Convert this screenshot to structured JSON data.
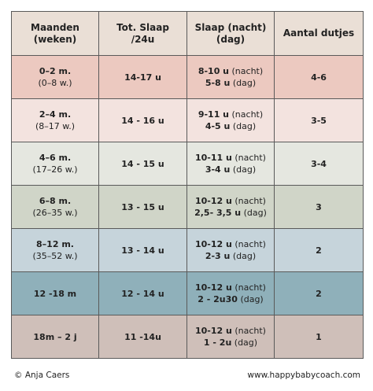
{
  "header": {
    "color": "#eadfd6",
    "cells": [
      [
        "Maanden",
        "(weken)"
      ],
      [
        "Tot. Slaap",
        "/24u"
      ],
      [
        "Slaap (nacht)",
        "(dag)"
      ],
      [
        "Aantal dutjes"
      ]
    ]
  },
  "rows": [
    {
      "color": "#ecc9c0",
      "cells": [
        [
          {
            "bold": "0–2 m."
          },
          {
            "plain": "(0–8 w.)"
          }
        ],
        [
          {
            "bold": "14-17 u"
          }
        ],
        [
          {
            "bold": "8-10 u",
            "plain": "(nacht)"
          },
          {
            "bold": "5-8 u",
            "plain": "(dag)"
          }
        ],
        [
          {
            "bold": "4-6"
          }
        ]
      ]
    },
    {
      "color": "#f3e3df",
      "cells": [
        [
          {
            "bold": "2–4 m."
          },
          {
            "plain": "(8–17 w.)"
          }
        ],
        [
          {
            "bold": "14 - 16 u"
          }
        ],
        [
          {
            "bold": "9-11 u",
            "plain": "(nacht)"
          },
          {
            "bold": "4-5 u",
            "plain": "(dag)"
          }
        ],
        [
          {
            "bold": "3-5"
          }
        ]
      ]
    },
    {
      "color": "#e5e7e0",
      "cells": [
        [
          {
            "bold": "4–6 m."
          },
          {
            "plain": "(17–26 w.)"
          }
        ],
        [
          {
            "bold": "14 - 15 u"
          }
        ],
        [
          {
            "bold": "10-11 u",
            "plain": "(nacht)"
          },
          {
            "bold": "3-4 u",
            "plain": "(dag)"
          }
        ],
        [
          {
            "bold": "3-4"
          }
        ]
      ]
    },
    {
      "color": "#d0d5c8",
      "cells": [
        [
          {
            "bold": "6–8 m."
          },
          {
            "plain": "(26–35 w.)"
          }
        ],
        [
          {
            "bold": "13 - 15 u"
          }
        ],
        [
          {
            "bold": "10-12 u",
            "plain": "(nacht)"
          },
          {
            "bold": "2,5- 3,5 u",
            "plain": "(dag)"
          }
        ],
        [
          {
            "bold": "3"
          }
        ]
      ]
    },
    {
      "color": "#c6d4db",
      "cells": [
        [
          {
            "bold": "8–12 m."
          },
          {
            "plain": "(35–52 w.)"
          }
        ],
        [
          {
            "bold": "13 - 14 u"
          }
        ],
        [
          {
            "bold": "10-12 u",
            "plain": "(nacht)"
          },
          {
            "bold": "2-3 u",
            "plain": "(dag)"
          }
        ],
        [
          {
            "bold": "2"
          }
        ]
      ]
    },
    {
      "color": "#8fb0ba",
      "cells": [
        [
          {
            "bold": "12 -18 m"
          }
        ],
        [
          {
            "bold": "12 - 14 u"
          }
        ],
        [
          {
            "bold": "10-12 u",
            "plain": "(nacht)"
          },
          {
            "bold": "2 - 2u30",
            "plain": "(dag)"
          }
        ],
        [
          {
            "bold": "2"
          }
        ]
      ]
    },
    {
      "color": "#cfbfb9",
      "cells": [
        [
          {
            "bold": "18m – 2 j"
          }
        ],
        [
          {
            "bold": "11 -14u"
          }
        ],
        [
          {
            "bold": "10-12 u",
            "plain": "(nacht)"
          },
          {
            "bold": "1 - 2u",
            "plain": "(dag)"
          }
        ],
        [
          {
            "bold": "1"
          }
        ]
      ]
    }
  ],
  "footer": {
    "left": "© Anja Caers",
    "right": "www.happybabycoach.com"
  }
}
